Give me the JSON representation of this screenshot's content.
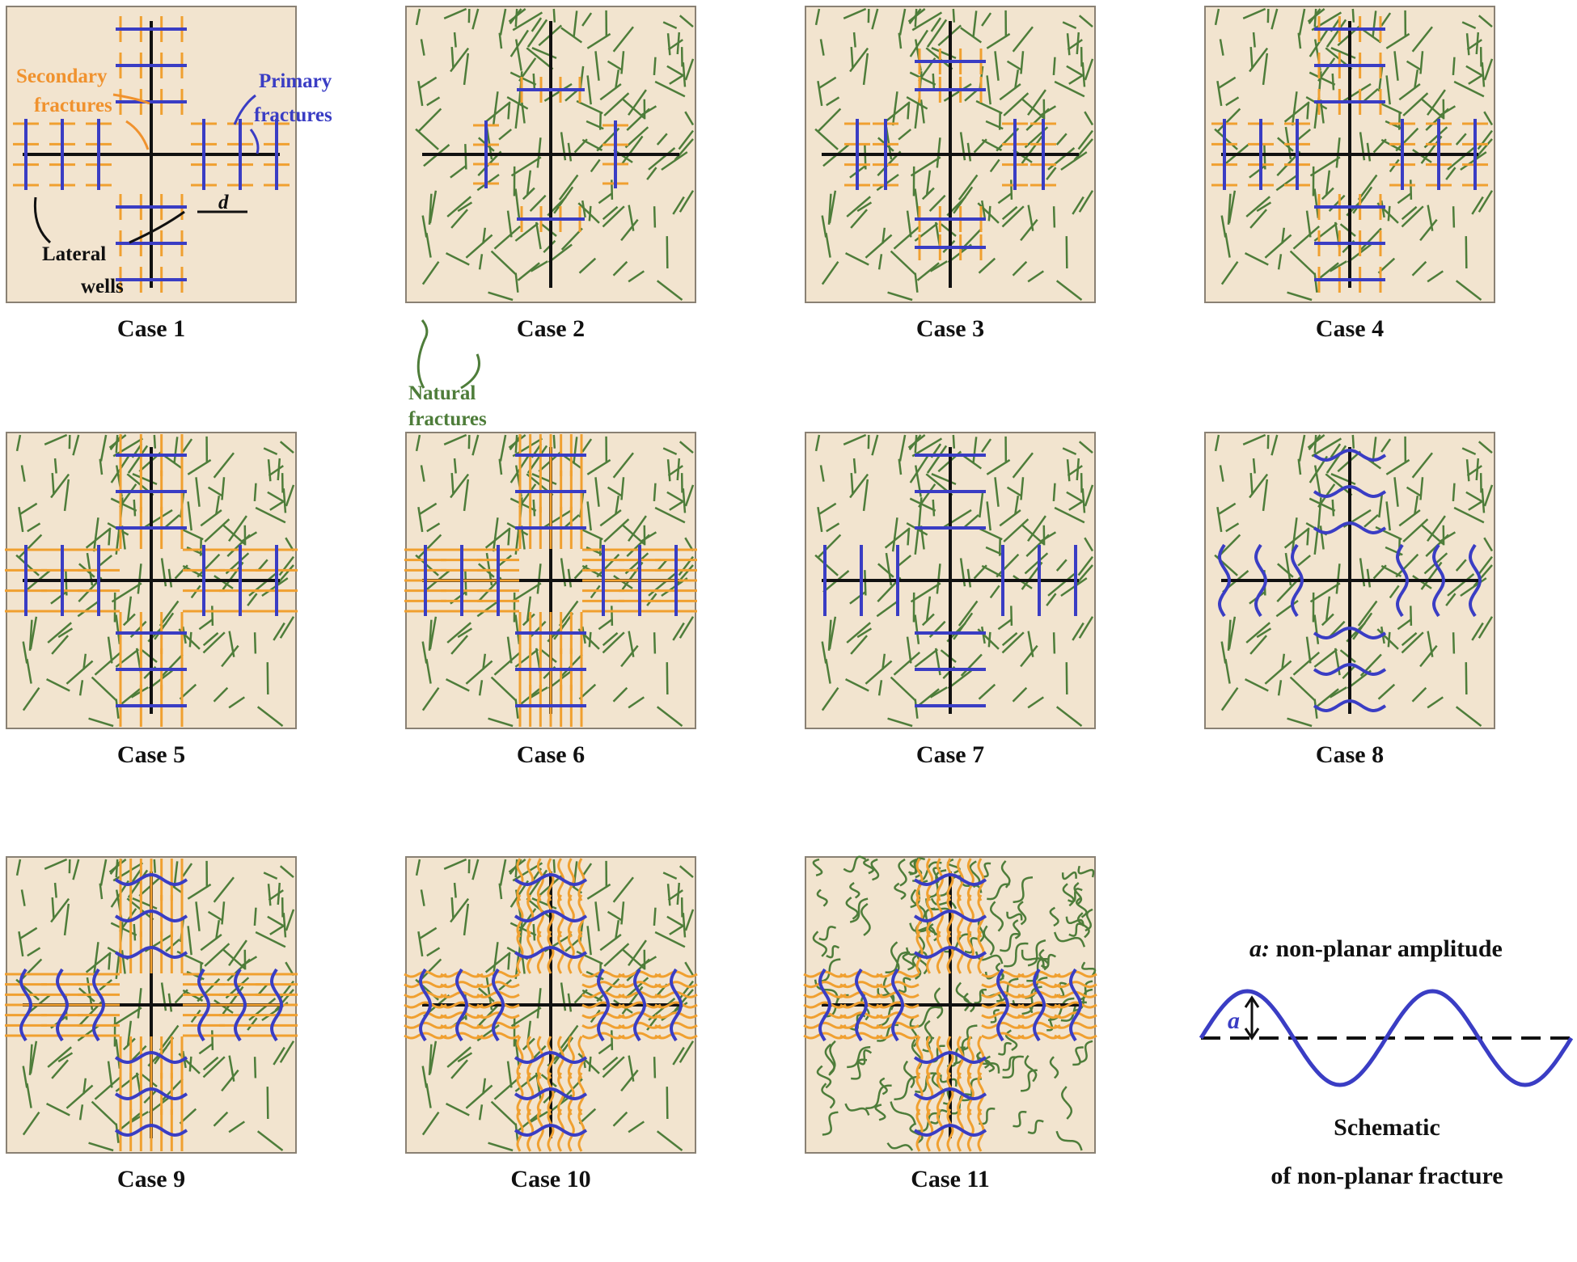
{
  "colors": {
    "panel_background": "#f2e4cf",
    "panel_border": "#8a8174",
    "lateral_well": "#111111",
    "primary_fracture": "#3a3dc4",
    "secondary_fracture": "#f0a030",
    "natural_fracture": "#4e7d3a"
  },
  "panels": [
    {
      "caption": "Case 1",
      "natural": "none",
      "primary": "planar",
      "secondary": "planar-regular"
    },
    {
      "caption": "Case 2",
      "natural": "straight",
      "primary": "planar",
      "secondary": "planar-regular"
    },
    {
      "caption": "Case 3",
      "natural": "straight",
      "primary": "planar",
      "secondary": "planar-regular"
    },
    {
      "caption": "Case 4",
      "natural": "straight",
      "primary": "planar",
      "secondary": "planar-regular"
    },
    {
      "caption": "Case 5",
      "natural": "straight",
      "primary": "planar",
      "secondary": "planar-long"
    },
    {
      "caption": "Case 6",
      "natural": "straight",
      "primary": "planar",
      "secondary": "planar-dense"
    },
    {
      "caption": "Case 7",
      "natural": "straight",
      "primary": "planar",
      "secondary": "none"
    },
    {
      "caption": "Case 8",
      "natural": "straight",
      "primary": "non-planar",
      "secondary": "none"
    },
    {
      "caption": "Case 9",
      "natural": "straight",
      "primary": "non-planar",
      "secondary": "planar-dense"
    },
    {
      "caption": "Case 10",
      "natural": "straight",
      "primary": "non-planar",
      "secondary": "non-planar-dense"
    },
    {
      "caption": "Case 11",
      "natural": "curved",
      "primary": "non-planar",
      "secondary": "non-planar-dense"
    }
  ],
  "annotations": {
    "secondary_fractures": [
      "Secondary",
      "fractures"
    ],
    "primary_fractures": [
      "Primary",
      "fractures"
    ],
    "lateral_wells": [
      "Lateral",
      "wells"
    ],
    "spacing_symbol": "d",
    "natural_fractures": [
      "Natural",
      "fractures"
    ]
  },
  "schematic": {
    "amplitude_symbol": "a",
    "amplitude_label": "a: non-planar amplitude",
    "amplitude_label_symbol": "a:",
    "amplitude_label_text": " non-planar amplitude",
    "title_line1": "Schematic",
    "title_line2": "of non-planar fracture"
  }
}
